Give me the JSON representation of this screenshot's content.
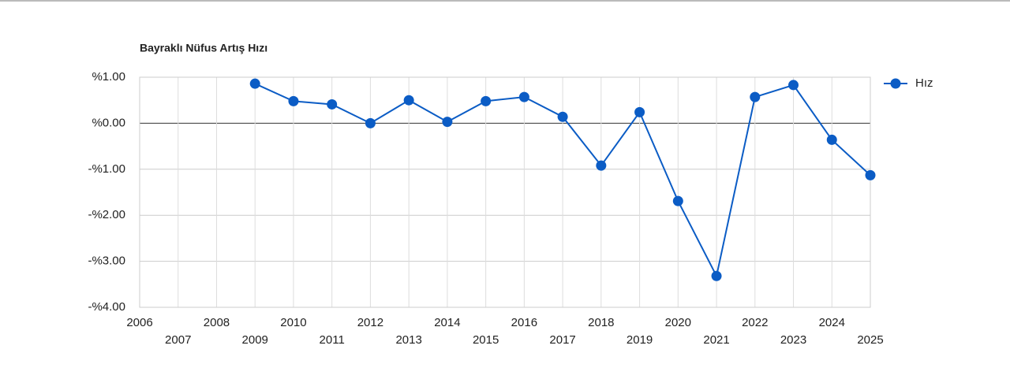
{
  "chart_data": {
    "type": "line",
    "title": "Bayraklı Nüfus Artış Hızı",
    "x": [
      2009,
      2010,
      2011,
      2012,
      2013,
      2014,
      2015,
      2016,
      2017,
      2018,
      2019,
      2020,
      2021,
      2022,
      2023,
      2024,
      2025
    ],
    "series": [
      {
        "name": "Hız",
        "color": "#0b5cc5",
        "values": [
          0.86,
          0.48,
          0.41,
          0.0,
          0.5,
          0.03,
          0.48,
          0.57,
          0.14,
          -0.92,
          0.24,
          -1.69,
          -3.32,
          0.57,
          0.83,
          -0.36,
          -1.13
        ]
      }
    ],
    "xlim": [
      2006,
      2025
    ],
    "xticks": [
      2006,
      2007,
      2008,
      2009,
      2010,
      2011,
      2012,
      2013,
      2014,
      2015,
      2016,
      2017,
      2018,
      2019,
      2020,
      2021,
      2022,
      2023,
      2024,
      2025
    ],
    "ylim": [
      -4,
      1
    ],
    "yticks": [
      {
        "value": -4,
        "label": "-%4.00"
      },
      {
        "value": -3,
        "label": "-%3.00"
      },
      {
        "value": -2,
        "label": "-%2.00"
      },
      {
        "value": -1,
        "label": "-%1.00"
      },
      {
        "value": 0,
        "label": "%0.00"
      },
      {
        "value": 1,
        "label": "%1.00"
      }
    ],
    "grid": true,
    "legend": "right"
  }
}
